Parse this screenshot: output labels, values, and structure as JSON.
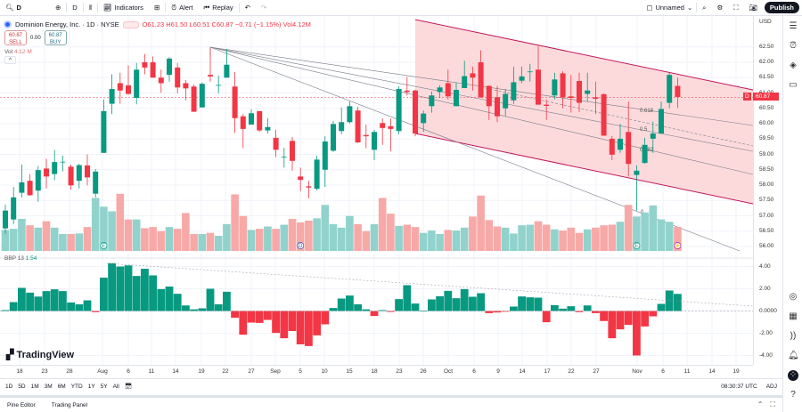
{
  "toolbar": {
    "symbol": "D",
    "interval": "D",
    "indicators": "Indicators",
    "alert": "Alert",
    "replay": "Replay",
    "layout_name": "Unnamed",
    "publish": "Publish"
  },
  "legend": {
    "title": "Dominion Energy, Inc. · 1D · NYSE",
    "ohlc": "O61.23 H61.50 L60.51 C60.87 −0.71 (−1.15%) Vol4.12M"
  },
  "trade": {
    "sell_price": "60.87",
    "sell_label": "SELL",
    "spread": "0.00",
    "buy_price": "60.87",
    "buy_label": "BUY"
  },
  "volume_legend": {
    "label": "Vol",
    "value": "4.12 M"
  },
  "bbp_legend": {
    "label": "BBP 13",
    "value": "1.54"
  },
  "brand": "TradingView",
  "currency": "USD",
  "price_ticks": [
    "62.50",
    "62.00",
    "61.50",
    "61.00",
    "60.50",
    "60.00",
    "59.50",
    "59.00",
    "58.50",
    "58.00",
    "57.50",
    "57.00",
    "56.50",
    "56.00"
  ],
  "bbp_ticks": [
    "4.00",
    "2.00",
    "0.0000",
    "-2.00",
    "-4.00"
  ],
  "last_price": "60.87",
  "last_price_tag": "D",
  "fib_labels": [
    "0.618",
    "0.5",
    "0.382",
    "0"
  ],
  "event_markers": [
    "E",
    "D",
    "E",
    "⚡"
  ],
  "date_labels": [
    "18",
    "23",
    "28",
    "Aug",
    "6",
    "11",
    "14",
    "19",
    "22",
    "27",
    "Sep",
    "5",
    "10",
    "15",
    "18",
    "23",
    "26",
    "Oct",
    "6",
    "9",
    "14",
    "17",
    "22",
    "27",
    "Nov",
    "6",
    "11",
    "14",
    "19"
  ],
  "ranges": [
    "1D",
    "5D",
    "1M",
    "3M",
    "6M",
    "YTD",
    "1Y",
    "5Y",
    "All"
  ],
  "clock": "08:30:37 UTC",
  "adj": "ADJ",
  "bottom_tabs": [
    "Pine Editor",
    "Trading Panel"
  ],
  "colors": {
    "up": "#089981",
    "down": "#f23645",
    "vol_up": "#92d2cc",
    "vol_down": "#f7a9a7",
    "channel_fill": "#fbd3d6",
    "channel_line": "#c2185b"
  },
  "chart_data": {
    "type": "candlestick",
    "ylim": [
      55.9,
      62.7
    ],
    "ohlc": [
      [
        56.59,
        57.36,
        56.41,
        57.17
      ],
      [
        56.88,
        57.94,
        56.73,
        57.6
      ],
      [
        57.75,
        58.67,
        57.6,
        58.09
      ],
      [
        58.14,
        58.35,
        57.65,
        57.67
      ],
      [
        57.82,
        58.62,
        57.46,
        58.49
      ],
      [
        58.54,
        58.86,
        57.89,
        58.28
      ],
      [
        58.36,
        59.15,
        58.16,
        58.75
      ],
      [
        58.74,
        58.96,
        58.45,
        58.76
      ],
      [
        58.6,
        58.67,
        57.85,
        57.99
      ],
      [
        58.14,
        58.7,
        57.89,
        58.65
      ],
      [
        58.64,
        59.0,
        57.99,
        58.25
      ],
      [
        57.72,
        58.52,
        57.6,
        58.44
      ],
      [
        59.05,
        60.79,
        59.05,
        60.41
      ],
      [
        60.65,
        61.61,
        60.31,
        61.13
      ],
      [
        61.32,
        61.66,
        60.65,
        61.08
      ],
      [
        61.25,
        61.9,
        60.94,
        60.97
      ],
      [
        60.84,
        61.98,
        60.63,
        61.76
      ],
      [
        62.0,
        62.27,
        61.61,
        61.83
      ],
      [
        62.0,
        62.19,
        61.5,
        61.5
      ],
      [
        61.5,
        61.76,
        61.01,
        61.32
      ],
      [
        61.59,
        62.17,
        61.37,
        62.12
      ],
      [
        61.83,
        61.98,
        60.99,
        61.18
      ],
      [
        61.32,
        61.42,
        60.76,
        61.15
      ],
      [
        61.21,
        61.28,
        60.38,
        60.39
      ],
      [
        60.53,
        61.34,
        60.53,
        61.3
      ],
      [
        61.59,
        62.48,
        61.37,
        61.54
      ],
      [
        61.24,
        61.57,
        60.99,
        61.26
      ],
      [
        61.5,
        62.43,
        61.5,
        61.92
      ],
      [
        61.21,
        61.69,
        59.7,
        60.18
      ],
      [
        60.24,
        60.31,
        59.2,
        59.83
      ],
      [
        59.97,
        60.47,
        59.97,
        60.34
      ],
      [
        60.41,
        60.41,
        59.73,
        59.78
      ],
      [
        59.78,
        60.18,
        59.68,
        59.89
      ],
      [
        59.54,
        59.8,
        58.91,
        59.15
      ],
      [
        58.9,
        59.22,
        58.57,
        58.92
      ],
      [
        59.44,
        59.57,
        58.47,
        58.79
      ],
      [
        58.28,
        58.57,
        57.8,
        58.17
      ],
      [
        57.96,
        58.14,
        57.57,
        57.92
      ],
      [
        57.88,
        58.96,
        57.83,
        58.83
      ],
      [
        58.5,
        59.59,
        57.94,
        59.42
      ],
      [
        59.12,
        60.09,
        59.08,
        59.99
      ],
      [
        59.76,
        60.53,
        59.66,
        60.05
      ],
      [
        60.05,
        60.72,
        60.01,
        60.57
      ],
      [
        60.43,
        60.55,
        59.37,
        59.39
      ],
      [
        59.63,
        59.97,
        59.2,
        59.59
      ],
      [
        59.15,
        59.8,
        58.81,
        59.73
      ],
      [
        60.02,
        60.17,
        59.31,
        59.86
      ],
      [
        59.92,
        60.17,
        59.1,
        59.83
      ],
      [
        59.76,
        61.21,
        59.66,
        61.13
      ],
      [
        61.08,
        61.52,
        60.92,
        61.03
      ],
      [
        61.08,
        61.11,
        59.59,
        59.68
      ],
      [
        60.02,
        60.43,
        59.73,
        60.33
      ],
      [
        60.57,
        61.05,
        60.36,
        60.92
      ],
      [
        61.03,
        61.25,
        60.84,
        61.18
      ],
      [
        61.32,
        61.76,
        60.79,
        60.89
      ],
      [
        60.57,
        61.34,
        60.57,
        61.1
      ],
      [
        61.16,
        62.05,
        61.16,
        61.55
      ],
      [
        61.64,
        61.86,
        61.08,
        61.5
      ],
      [
        62.0,
        62.39,
        60.84,
        60.86
      ],
      [
        61.23,
        61.25,
        60.12,
        60.57
      ],
      [
        60.86,
        61.23,
        60.05,
        60.24
      ],
      [
        60.5,
        61.13,
        60.26,
        60.97
      ],
      [
        60.76,
        61.86,
        60.65,
        61.35
      ],
      [
        61.4,
        61.86,
        61.32,
        61.54
      ],
      [
        61.68,
        61.95,
        61.37,
        61.7
      ],
      [
        61.76,
        62.53,
        60.62,
        60.62
      ],
      [
        60.62,
        60.79,
        60.12,
        60.58
      ],
      [
        60.92,
        61.66,
        60.79,
        61.44
      ],
      [
        61.64,
        61.71,
        60.5,
        60.86
      ],
      [
        60.89,
        61.59,
        60.36,
        60.84
      ],
      [
        61.39,
        61.66,
        60.38,
        60.68
      ],
      [
        60.97,
        61.66,
        60.72,
        61.08
      ],
      [
        60.86,
        61.37,
        60.31,
        60.81
      ],
      [
        60.96,
        60.99,
        59.61,
        59.61
      ],
      [
        59.51,
        59.6,
        58.81,
        58.99
      ],
      [
        59.15,
        60.0,
        59.05,
        59.51
      ],
      [
        59.73,
        60.72,
        58.28,
        58.69
      ],
      [
        58.33,
        58.65,
        57.17,
        58.47
      ],
      [
        58.72,
        59.54,
        58.7,
        59.31
      ],
      [
        59.51,
        60.07,
        59.05,
        59.68
      ],
      [
        59.68,
        60.72,
        59.68,
        60.48
      ],
      [
        60.68,
        61.66,
        60.5,
        61.59
      ],
      [
        61.23,
        61.5,
        60.51,
        60.87
      ]
    ],
    "volume_millions": [
      3.6,
      3.8,
      5.5,
      4.4,
      4.0,
      5.1,
      4.0,
      2.9,
      2.9,
      3.0,
      4.1,
      9.1,
      7.6,
      6.8,
      9.8,
      5.4,
      5.4,
      3.9,
      4.1,
      3.4,
      4.1,
      3.8,
      6.5,
      2.9,
      2.9,
      3.1,
      2.6,
      4.6,
      9.7,
      6.0,
      3.6,
      3.8,
      4.2,
      3.8,
      4.5,
      5.5,
      4.9,
      5.2,
      5.6,
      7.9,
      4.6,
      4.0,
      6.0,
      4.6,
      3.4,
      4.6,
      9.1,
      6.4,
      4.3,
      4.5,
      4.1,
      3.1,
      3.5,
      2.9,
      3.6,
      3.5,
      4.0,
      5.9,
      9.5,
      5.3,
      4.2,
      4.0,
      3.0,
      4.4,
      4.5,
      5.1,
      4.5,
      3.7,
      3.5,
      4.0,
      3.1,
      3.7,
      4.0,
      4.4,
      4.5,
      5.0,
      7.9,
      5.9,
      6.6,
      7.8,
      5.4,
      5.0,
      4.12
    ],
    "bbp": [
      0.08,
      0.8,
      2.08,
      1.65,
      1.3,
      1.79,
      1.95,
      1.79,
      0.77,
      0.6,
      0.96,
      -0.1,
      3.0,
      4.3,
      4.0,
      4.1,
      3.15,
      3.8,
      3.2,
      1.97,
      2.2,
      1.55,
      0.5,
      0.15,
      0.24,
      2.0,
      0.6,
      1.73,
      -0.6,
      -2.13,
      -1.04,
      -1.07,
      -0.8,
      -1.97,
      -2.45,
      -1.8,
      -3.0,
      -3.15,
      -2.19,
      -1.2,
      0.27,
      1.12,
      1.39,
      0.6,
      0.15,
      -0.45,
      0.08,
      -0.08,
      1.07,
      2.32,
      0.67,
      0.02,
      1.04,
      1.33,
      1.81,
      1.15,
      1.97,
      1.28,
      1.6,
      -0.19,
      -0.13,
      -0.05,
      0.4,
      1.31,
      1.23,
      1.2,
      -1.01,
      0.53,
      0.21,
      0.43,
      -0.1,
      0.5,
      -0.19,
      -0.9,
      -2.45,
      -1.65,
      -1.25,
      -4.0,
      -1.39,
      -0.48,
      0.64,
      1.84,
      1.54
    ],
    "bbp_ylim": [
      -4.8,
      4.8
    ]
  }
}
